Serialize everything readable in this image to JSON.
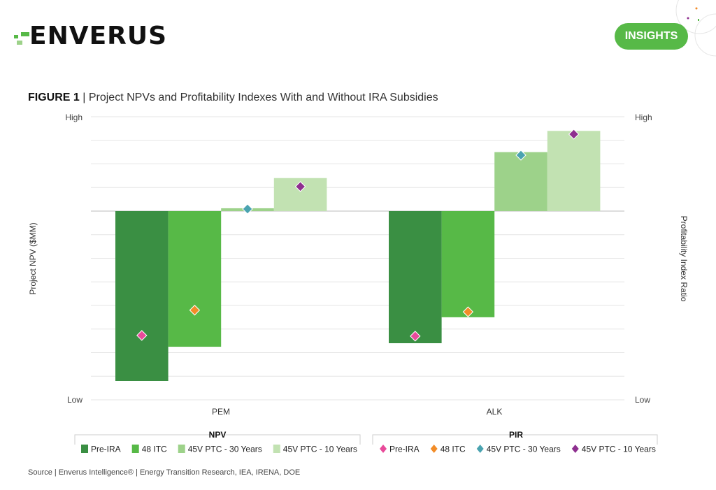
{
  "header": {
    "logo_text": "ENVERUS",
    "badge": "INSIGHTS"
  },
  "figure": {
    "label": "FIGURE 1",
    "separator": " | ",
    "title": "Project NPVs and Profitability Indexes With and Without IRA Subsidies"
  },
  "source": "Source | Enverus Intelligence® | Energy Transition Research, IEA, IRENA, DOE",
  "colors": {
    "brand": "#57b947",
    "pre_ira_bar": "#3a8f43",
    "itc_bar": "#57b947",
    "ptc30_bar": "#9dd28a",
    "ptc10_bar": "#c2e2b2",
    "pre_ira_pir": "#e84a9a",
    "itc_pir": "#f28c28",
    "ptc30_pir": "#4aa3b0",
    "ptc10_pir": "#8e2f8f"
  },
  "chart_data": {
    "type": "bar",
    "categories": [
      "PEM",
      "ALK"
    ],
    "ylabel": "Project NPV ($MM)",
    "y2label": "Profitability Index Ratio",
    "y_tick_labels": {
      "high": "High",
      "low": "Low"
    },
    "ylim": [
      -8,
      4
    ],
    "grid": true,
    "legend_placement": "bottom",
    "legend_groups": [
      {
        "title": "NPV"
      },
      {
        "title": "PIR"
      }
    ],
    "series": [
      {
        "name": "Pre-IRA",
        "group": "NPV",
        "kind": "bar",
        "values": [
          -7.2,
          -5.6
        ]
      },
      {
        "name": "48 ITC",
        "group": "NPV",
        "kind": "bar",
        "values": [
          -5.75,
          -4.5
        ]
      },
      {
        "name": "45V PTC - 30 Years",
        "group": "NPV",
        "kind": "bar",
        "values": [
          0.12,
          2.5
        ]
      },
      {
        "name": "45V PTC - 10 Years",
        "group": "NPV",
        "kind": "bar",
        "values": [
          1.4,
          3.4
        ]
      },
      {
        "name": "Pre-IRA",
        "group": "PIR",
        "kind": "diamond",
        "values": [
          -5.27,
          -5.3
        ]
      },
      {
        "name": "48 ITC",
        "group": "PIR",
        "kind": "diamond",
        "values": [
          -4.2,
          -4.27
        ]
      },
      {
        "name": "45V PTC - 30 Years",
        "group": "PIR",
        "kind": "diamond",
        "values": [
          0.09,
          2.37
        ]
      },
      {
        "name": "45V PTC - 10 Years",
        "group": "PIR",
        "kind": "diamond",
        "values": [
          1.04,
          3.26
        ]
      }
    ]
  }
}
